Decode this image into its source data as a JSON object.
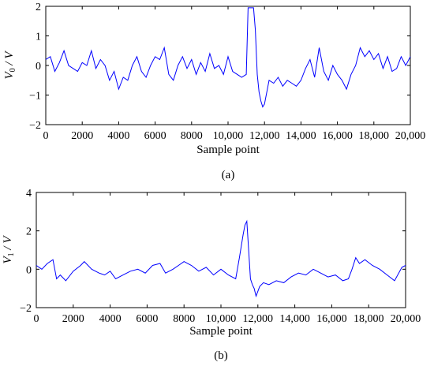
{
  "chart_data": [
    {
      "id": "a",
      "type": "line",
      "panel_label": "(a)",
      "xlabel": "Sample point",
      "ylabel": "V0 / V",
      "ylabel_main": "V",
      "ylabel_sub": "0",
      "ylabel_tail": " / V",
      "xlim": [
        0,
        20000
      ],
      "ylim": [
        -2,
        2
      ],
      "xticks": [
        0,
        2000,
        4000,
        6000,
        8000,
        10000,
        12000,
        14000,
        16000,
        18000,
        20000
      ],
      "xtick_labels": [
        "0",
        "2000",
        "4000",
        "6000",
        "8000",
        "10,000",
        "12,000",
        "14,000",
        "16,000",
        "18,000",
        "20,000"
      ],
      "yticks": [
        -2,
        -1,
        0,
        1,
        2
      ],
      "ytick_labels": [
        "−2",
        "−1",
        "0",
        "1",
        "2"
      ],
      "grid": false,
      "line_color": "#0000ff",
      "series": [
        {
          "x": [
            0,
            250,
            500,
            750,
            1000,
            1250,
            1500,
            1750,
            2000,
            2250,
            2500,
            2750,
            3000,
            3250,
            3500,
            3750,
            4000,
            4250,
            4500,
            4750,
            5000,
            5250,
            5500,
            5750,
            6000,
            6250,
            6500,
            6750,
            7000,
            7250,
            7500,
            7750,
            8000,
            8250,
            8500,
            8750,
            9000,
            9250,
            9500,
            9750,
            10000,
            10250,
            10500,
            10750,
            11000,
            11100,
            11400,
            11500,
            11600,
            11700,
            11800,
            11900,
            12000,
            12250,
            12500,
            12750,
            13000,
            13250,
            13500,
            13750,
            14000,
            14250,
            14500,
            14750,
            15000,
            15250,
            15500,
            15750,
            16000,
            16250,
            16500,
            16750,
            17000,
            17250,
            17500,
            17750,
            18000,
            18250,
            18500,
            18750,
            19000,
            19250,
            19500,
            19750,
            20000
          ],
          "y": [
            0.2,
            0.3,
            -0.2,
            0.1,
            0.5,
            0.0,
            -0.1,
            -0.2,
            0.1,
            0.0,
            0.5,
            -0.1,
            0.2,
            0.0,
            -0.5,
            -0.2,
            -0.8,
            -0.4,
            -0.5,
            0.0,
            0.3,
            -0.2,
            -0.4,
            0.0,
            0.3,
            0.2,
            0.6,
            -0.3,
            -0.5,
            0.0,
            0.3,
            -0.1,
            0.2,
            -0.3,
            0.1,
            -0.2,
            0.4,
            -0.1,
            0.0,
            -0.3,
            0.3,
            -0.2,
            -0.3,
            -0.4,
            -0.3,
            1.95,
            1.95,
            1.2,
            -0.3,
            -0.9,
            -1.2,
            -1.4,
            -1.3,
            -0.5,
            -0.6,
            -0.4,
            -0.7,
            -0.5,
            -0.6,
            -0.7,
            -0.5,
            -0.1,
            0.2,
            -0.4,
            0.6,
            -0.2,
            -0.5,
            0.0,
            -0.3,
            -0.5,
            -0.8,
            -0.3,
            0.0,
            0.6,
            0.3,
            0.5,
            0.2,
            0.4,
            -0.1,
            0.3,
            -0.2,
            -0.1,
            0.3,
            0.0,
            0.3
          ]
        }
      ]
    },
    {
      "id": "b",
      "type": "line",
      "panel_label": "(b)",
      "xlabel": "Sample point",
      "ylabel": "V1 / V",
      "ylabel_main": "V",
      "ylabel_sub": "1",
      "ylabel_tail": " / V",
      "xlim": [
        0,
        20000
      ],
      "ylim": [
        -2,
        4
      ],
      "xticks": [
        0,
        2000,
        4000,
        6000,
        8000,
        10000,
        12000,
        14000,
        16000,
        18000,
        20000
      ],
      "xtick_labels": [
        "0",
        "2000",
        "4000",
        "6000",
        "8000",
        "10,000",
        "12,000",
        "14,000",
        "16,000",
        "18,000",
        "20,000"
      ],
      "yticks": [
        -2,
        0,
        2,
        4
      ],
      "ytick_labels": [
        "−2",
        "0",
        "2",
        "4"
      ],
      "grid": false,
      "line_color": "#0000ff",
      "series": [
        {
          "x": [
            0,
            300,
            600,
            900,
            1100,
            1300,
            1600,
            2000,
            2400,
            2600,
            3000,
            3400,
            3700,
            4000,
            4300,
            4700,
            5100,
            5500,
            5900,
            6300,
            6700,
            7000,
            7400,
            7700,
            8000,
            8400,
            8800,
            9200,
            9600,
            10000,
            10400,
            10800,
            11000,
            11200,
            11300,
            11400,
            11500,
            11600,
            11700,
            11800,
            11900,
            12100,
            12300,
            12600,
            13000,
            13400,
            13800,
            14200,
            14600,
            15000,
            15400,
            15800,
            16200,
            16600,
            16900,
            17100,
            17300,
            17500,
            17800,
            18200,
            18600,
            19000,
            19400,
            19800,
            20000
          ],
          "y": [
            0.2,
            0.0,
            0.3,
            0.5,
            -0.5,
            -0.3,
            -0.6,
            -0.1,
            0.2,
            0.4,
            0.0,
            -0.2,
            -0.3,
            -0.1,
            -0.5,
            -0.3,
            -0.1,
            0.0,
            -0.2,
            0.2,
            0.3,
            -0.2,
            0.0,
            0.2,
            0.4,
            0.2,
            -0.1,
            0.1,
            -0.3,
            0.0,
            -0.3,
            -0.5,
            0.6,
            1.8,
            2.3,
            2.5,
            1.0,
            -0.5,
            -0.8,
            -1.0,
            -1.4,
            -0.9,
            -0.7,
            -0.8,
            -0.6,
            -0.7,
            -0.4,
            -0.2,
            -0.3,
            0.0,
            -0.2,
            -0.4,
            -0.3,
            -0.6,
            -0.5,
            0.0,
            0.6,
            0.3,
            0.5,
            0.2,
            0.0,
            -0.3,
            -0.6,
            0.1,
            0.2
          ]
        }
      ]
    }
  ]
}
